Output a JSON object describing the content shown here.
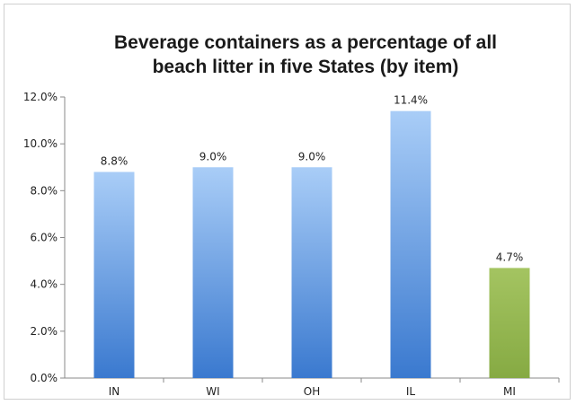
{
  "chart_data": {
    "type": "bar",
    "title_line1": "Beverage containers as a percentage of all",
    "title_line2": "beach litter in five States (by item)",
    "categories": [
      "IN",
      "WI",
      "OH",
      "IL",
      "MI"
    ],
    "values": [
      8.8,
      9.0,
      9.0,
      11.4,
      4.7
    ],
    "data_labels": [
      "8.8%",
      "9.0%",
      "9.0%",
      "11.4%",
      "4.7%"
    ],
    "bar_colors": [
      "#3f7fd3",
      "#3f7fd3",
      "#3f7fd3",
      "#3f7fd3",
      "#8db04a"
    ],
    "yticks": [
      "0.0%",
      "2.0%",
      "4.0%",
      "6.0%",
      "8.0%",
      "10.0%",
      "12.0%"
    ],
    "ylim": [
      0,
      12
    ],
    "xlabel": "",
    "ylabel": "",
    "grid": false,
    "legend": "none"
  }
}
